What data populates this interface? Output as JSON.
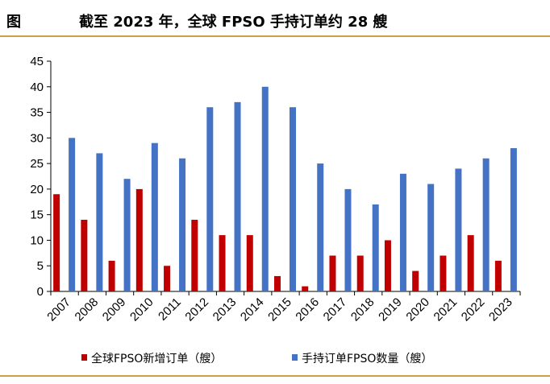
{
  "header": {
    "figure_label": "图",
    "title": "截至 2023 年，全球 FPSO 手持订单约 28 艘"
  },
  "chart_data": {
    "type": "bar",
    "title": "截至 2023 年，全球 FPSO 手持订单约 28 艘",
    "xlabel": "",
    "ylabel": "",
    "ylim": [
      0,
      45
    ],
    "yticks": [
      0,
      5,
      10,
      15,
      20,
      25,
      30,
      35,
      40,
      45
    ],
    "grid": false,
    "legend_position": "bottom",
    "categories": [
      "2007",
      "2008",
      "2009",
      "2010",
      "2011",
      "2012",
      "2013",
      "2014",
      "2015",
      "2016",
      "2017",
      "2018",
      "2019",
      "2020",
      "2021",
      "2022",
      "2023"
    ],
    "series": [
      {
        "name": "全球FPSO新增订单（艘）",
        "color": "#c00000",
        "values": [
          19,
          14,
          6,
          20,
          5,
          14,
          11,
          11,
          3,
          1,
          7,
          7,
          10,
          4,
          7,
          11,
          6
        ]
      },
      {
        "name": "手持订单FPSO数量（艘）",
        "color": "#4472c4",
        "values": [
          30,
          27,
          22,
          29,
          26,
          36,
          37,
          40,
          36,
          25,
          20,
          17,
          23,
          21,
          24,
          26,
          28
        ]
      }
    ]
  }
}
